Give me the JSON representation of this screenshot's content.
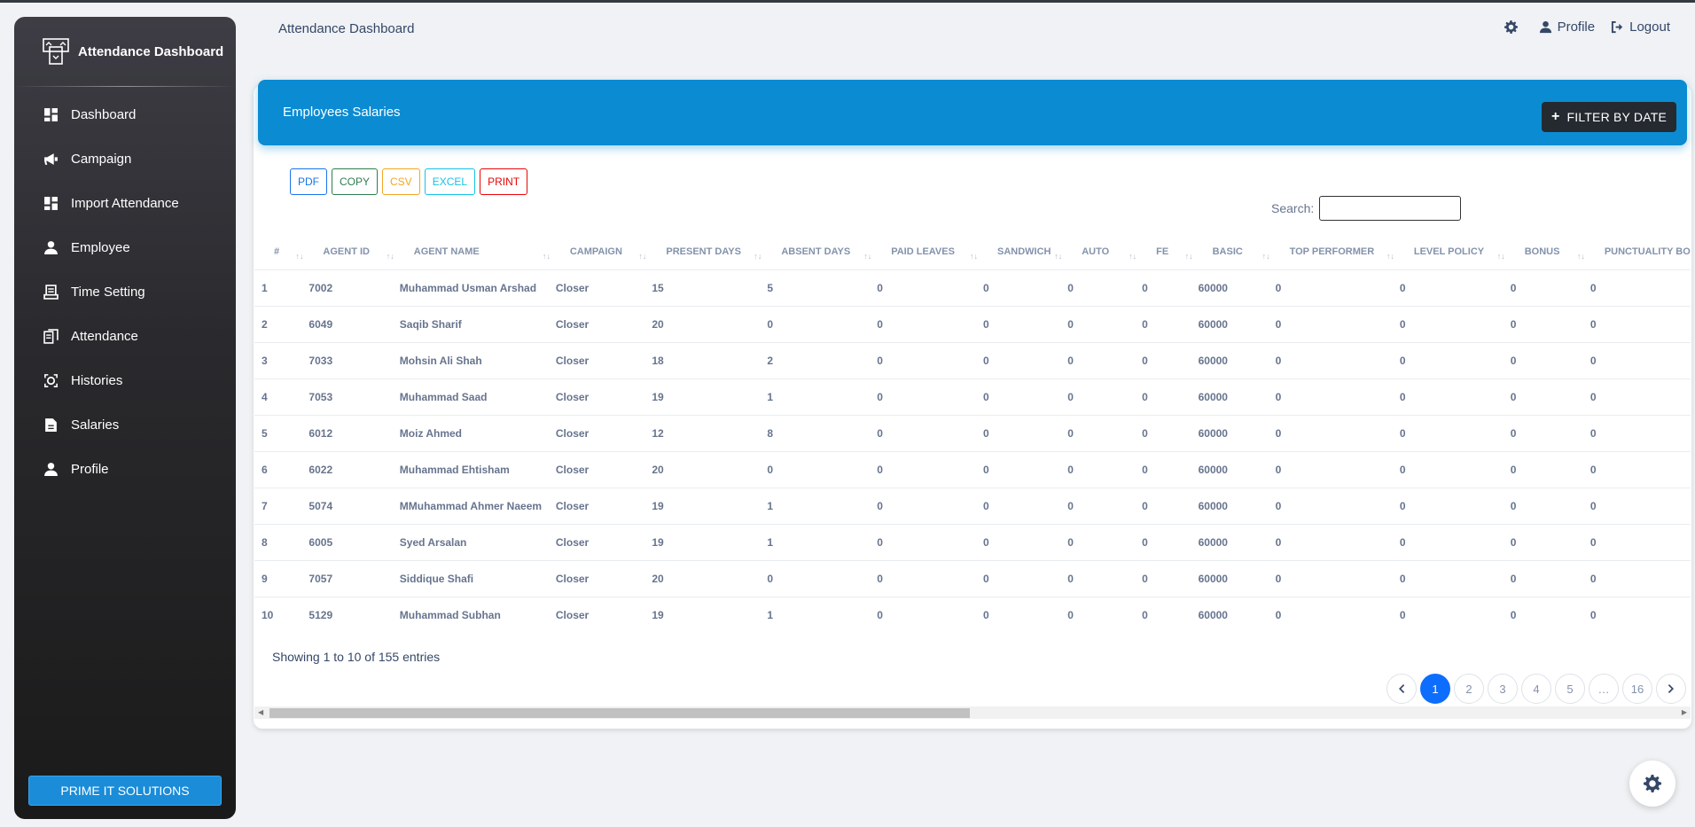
{
  "app": {
    "brand": "Attendance Dashboard",
    "page_title": "Attendance Dashboard",
    "footer_button": "PRIME IT SOLUTIONS"
  },
  "sidebar": {
    "items": [
      {
        "label": "Dashboard",
        "icon": "dashboard-icon"
      },
      {
        "label": "Campaign",
        "icon": "megaphone-icon"
      },
      {
        "label": "Import Attendance",
        "icon": "dashboard-icon"
      },
      {
        "label": "Employee",
        "icon": "user-icon"
      },
      {
        "label": "Time Setting",
        "icon": "receipt-icon"
      },
      {
        "label": "Attendance",
        "icon": "copy-icon"
      },
      {
        "label": "Histories",
        "icon": "history-icon"
      },
      {
        "label": "Salaries",
        "icon": "file-icon"
      },
      {
        "label": "Profile",
        "icon": "user-icon"
      }
    ]
  },
  "header": {
    "profile": "Profile",
    "logout": "Logout"
  },
  "card": {
    "title": "Employees Salaries",
    "filter_button": "FILTER BY DATE",
    "export_buttons": [
      {
        "label": "PDF",
        "color": "#1a73e8"
      },
      {
        "label": "COPY",
        "color": "#2e7d4f"
      },
      {
        "label": "CSV",
        "color": "#f5a623"
      },
      {
        "label": "EXCEL",
        "color": "#17c1e8"
      },
      {
        "label": "PRINT",
        "color": "#ea0606"
      }
    ],
    "search_label": "Search:"
  },
  "table": {
    "columns": [
      "#",
      "AGENT ID",
      "AGENT NAME",
      "CAMPAIGN",
      "PRESENT DAYS",
      "ABSENT DAYS",
      "PAID LEAVES",
      "SANDWICH",
      "AUTO",
      "FE",
      "BASIC",
      "TOP PERFORMER",
      "LEVEL POLICY",
      "BONUS",
      "PUNCTUALITY BONUS"
    ],
    "rows": [
      [
        "1",
        "7002",
        "Muhammad Usman Arshad",
        "Closer",
        "15",
        "5",
        "0",
        "0",
        "0",
        "0",
        "60000",
        "0",
        "0",
        "0",
        "0"
      ],
      [
        "2",
        "6049",
        "Saqib Sharif",
        "Closer",
        "20",
        "0",
        "0",
        "0",
        "0",
        "0",
        "60000",
        "0",
        "0",
        "0",
        "0"
      ],
      [
        "3",
        "7033",
        "Mohsin Ali Shah",
        "Closer",
        "18",
        "2",
        "0",
        "0",
        "0",
        "0",
        "60000",
        "0",
        "0",
        "0",
        "0"
      ],
      [
        "4",
        "7053",
        "Muhammad Saad",
        "Closer",
        "19",
        "1",
        "0",
        "0",
        "0",
        "0",
        "60000",
        "0",
        "0",
        "0",
        "0"
      ],
      [
        "5",
        "6012",
        "Moiz Ahmed",
        "Closer",
        "12",
        "8",
        "0",
        "0",
        "0",
        "0",
        "60000",
        "0",
        "0",
        "0",
        "0"
      ],
      [
        "6",
        "6022",
        "Muhammad Ehtisham",
        "Closer",
        "20",
        "0",
        "0",
        "0",
        "0",
        "0",
        "60000",
        "0",
        "0",
        "0",
        "0"
      ],
      [
        "7",
        "5074",
        "MMuhammad Ahmer Naeem",
        "Closer",
        "19",
        "1",
        "0",
        "0",
        "0",
        "0",
        "60000",
        "0",
        "0",
        "0",
        "0"
      ],
      [
        "8",
        "6005",
        "Syed Arsalan",
        "Closer",
        "19",
        "1",
        "0",
        "0",
        "0",
        "0",
        "60000",
        "0",
        "0",
        "0",
        "0"
      ],
      [
        "9",
        "7057",
        "Siddique Shafi",
        "Closer",
        "20",
        "0",
        "0",
        "0",
        "0",
        "0",
        "60000",
        "0",
        "0",
        "0",
        "0"
      ],
      [
        "10",
        "5129",
        "Muhammad Subhan",
        "Closer",
        "19",
        "1",
        "0",
        "0",
        "0",
        "0",
        "60000",
        "0",
        "0",
        "0",
        "0"
      ]
    ],
    "sort_glyph": "↑↓",
    "showing": "Showing 1 to 10 of 155 entries"
  },
  "pagination": {
    "pages": [
      "1",
      "2",
      "3",
      "4",
      "5",
      "…",
      "16"
    ],
    "active": "1"
  },
  "colors": {
    "accent": "#0b8bd2",
    "active_page": "#0d6efd"
  }
}
